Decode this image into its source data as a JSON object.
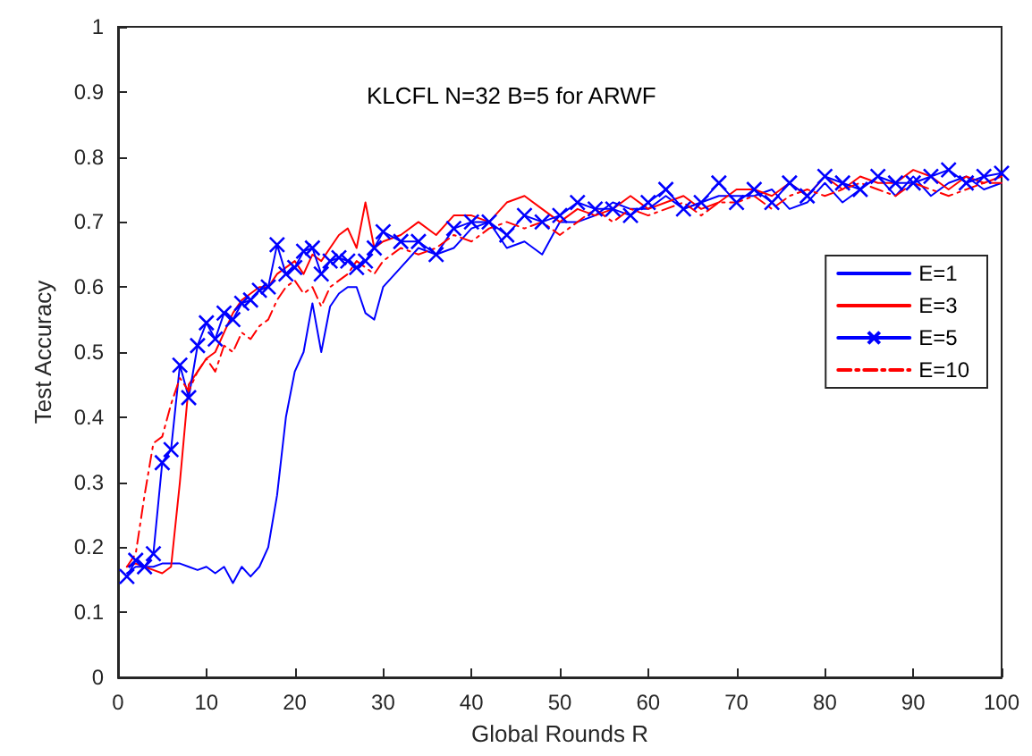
{
  "chart_data": {
    "type": "line",
    "title": "KLCFL N=32 B=5 for ARWF",
    "xlabel": "Global Rounds R",
    "ylabel": "Test Accuracy",
    "x": [
      1,
      2,
      3,
      4,
      5,
      6,
      7,
      8,
      9,
      10,
      11,
      12,
      13,
      14,
      15,
      16,
      17,
      18,
      19,
      20,
      21,
      22,
      23,
      24,
      25,
      26,
      27,
      28,
      29,
      30,
      32,
      34,
      36,
      38,
      40,
      42,
      44,
      46,
      48,
      50,
      52,
      54,
      56,
      58,
      60,
      62,
      64,
      66,
      68,
      70,
      72,
      74,
      76,
      78,
      80,
      82,
      84,
      86,
      88,
      90,
      92,
      94,
      96,
      98,
      100
    ],
    "xlim": [
      0,
      100
    ],
    "xticks": [
      0,
      10,
      20,
      30,
      40,
      50,
      60,
      70,
      80,
      90,
      100
    ],
    "ylim": [
      0,
      1
    ],
    "yticks": [
      0,
      0.1,
      0.2,
      0.3,
      0.4,
      0.5,
      0.6,
      0.7,
      0.8,
      0.9,
      1
    ],
    "grid": false,
    "legend": "right",
    "series": [
      {
        "name": "E=1",
        "color": "#0000ff",
        "line_style": "solid",
        "marker": "none",
        "values": [
          0.16,
          0.17,
          0.17,
          0.17,
          0.175,
          0.175,
          0.175,
          0.17,
          0.165,
          0.17,
          0.16,
          0.17,
          0.145,
          0.17,
          0.155,
          0.17,
          0.2,
          0.28,
          0.4,
          0.47,
          0.5,
          0.575,
          0.5,
          0.57,
          0.59,
          0.6,
          0.6,
          0.56,
          0.55,
          0.6,
          0.63,
          0.66,
          0.65,
          0.66,
          0.69,
          0.7,
          0.66,
          0.67,
          0.65,
          0.7,
          0.7,
          0.71,
          0.73,
          0.72,
          0.72,
          0.74,
          0.72,
          0.73,
          0.74,
          0.74,
          0.74,
          0.75,
          0.72,
          0.73,
          0.76,
          0.73,
          0.75,
          0.77,
          0.74,
          0.77,
          0.74,
          0.76,
          0.77,
          0.75,
          0.76
        ]
      },
      {
        "name": "E=3",
        "color": "#ff0000",
        "line_style": "solid",
        "marker": "none",
        "values": [
          0.17,
          0.175,
          0.17,
          0.165,
          0.16,
          0.17,
          0.3,
          0.45,
          0.47,
          0.49,
          0.5,
          0.53,
          0.56,
          0.58,
          0.59,
          0.6,
          0.6,
          0.62,
          0.63,
          0.64,
          0.62,
          0.65,
          0.64,
          0.66,
          0.68,
          0.69,
          0.66,
          0.73,
          0.66,
          0.67,
          0.68,
          0.7,
          0.68,
          0.71,
          0.71,
          0.7,
          0.73,
          0.74,
          0.72,
          0.7,
          0.72,
          0.71,
          0.72,
          0.74,
          0.72,
          0.73,
          0.74,
          0.72,
          0.73,
          0.75,
          0.75,
          0.74,
          0.76,
          0.74,
          0.77,
          0.75,
          0.77,
          0.76,
          0.76,
          0.78,
          0.77,
          0.75,
          0.77,
          0.76,
          0.77
        ]
      },
      {
        "name": "E=5",
        "color": "#0000ff",
        "line_style": "solid",
        "marker": "cross",
        "values": [
          0.155,
          0.18,
          0.17,
          0.19,
          0.33,
          0.35,
          0.48,
          0.43,
          0.51,
          0.545,
          0.52,
          0.56,
          0.55,
          0.575,
          0.58,
          0.595,
          0.6,
          0.665,
          0.62,
          0.63,
          0.655,
          0.66,
          0.62,
          0.64,
          0.645,
          0.64,
          0.63,
          0.64,
          0.66,
          0.685,
          0.67,
          0.67,
          0.65,
          0.69,
          0.7,
          0.7,
          0.68,
          0.71,
          0.7,
          0.71,
          0.73,
          0.72,
          0.72,
          0.71,
          0.73,
          0.75,
          0.72,
          0.73,
          0.76,
          0.73,
          0.75,
          0.73,
          0.76,
          0.74,
          0.77,
          0.76,
          0.75,
          0.77,
          0.76,
          0.76,
          0.77,
          0.78,
          0.76,
          0.77,
          0.775
        ]
      },
      {
        "name": "E=10",
        "color": "#ff0000",
        "line_style": "dashdot",
        "marker": "none",
        "values": [
          0.17,
          0.19,
          0.28,
          0.36,
          0.37,
          0.42,
          0.46,
          0.44,
          0.47,
          0.49,
          0.47,
          0.51,
          0.5,
          0.53,
          0.52,
          0.54,
          0.55,
          0.58,
          0.6,
          0.61,
          0.59,
          0.6,
          0.57,
          0.6,
          0.61,
          0.62,
          0.64,
          0.63,
          0.62,
          0.64,
          0.66,
          0.65,
          0.66,
          0.68,
          0.67,
          0.69,
          0.7,
          0.69,
          0.7,
          0.68,
          0.7,
          0.72,
          0.7,
          0.72,
          0.71,
          0.72,
          0.73,
          0.71,
          0.73,
          0.73,
          0.74,
          0.72,
          0.74,
          0.75,
          0.74,
          0.75,
          0.76,
          0.75,
          0.74,
          0.76,
          0.75,
          0.74,
          0.75,
          0.76,
          0.76
        ]
      }
    ]
  }
}
